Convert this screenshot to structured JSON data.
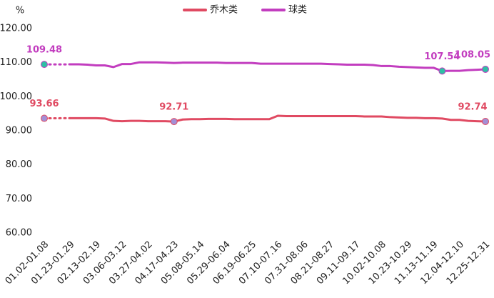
{
  "chart_data": {
    "type": "line",
    "y_label": "%",
    "categories": [
      "01.02-01.08",
      null,
      null,
      "01.23-01.29",
      null,
      null,
      "02.13-02.19",
      null,
      null,
      "03.06-03.12",
      null,
      null,
      "03.27-04.02",
      null,
      null,
      "04.17-04.23",
      null,
      null,
      "05.08-05.14",
      null,
      null,
      "05.29-06.04",
      null,
      null,
      "06.19-06.25",
      null,
      null,
      "07.10-07.16",
      null,
      null,
      "07.31-08.06",
      null,
      null,
      "08.21-08.27",
      null,
      null,
      "09.11-09.17",
      null,
      null,
      "10.02-10.08",
      null,
      null,
      "10.23-10.29",
      null,
      null,
      "11.13-11.19",
      null,
      null,
      "12.04-12.10",
      null,
      null,
      "12.25-12.31"
    ],
    "series": [
      {
        "name": "乔木类",
        "color": "#e04a62",
        "marker_color": "#a38fd6",
        "values": [
          93.66,
          null,
          null,
          93.7,
          93.7,
          93.7,
          93.7,
          93.6,
          92.9,
          92.8,
          92.9,
          92.9,
          92.8,
          92.8,
          92.8,
          92.71,
          93.3,
          93.4,
          93.4,
          93.5,
          93.5,
          93.5,
          93.4,
          93.4,
          93.4,
          93.4,
          93.4,
          94.4,
          94.3,
          94.3,
          94.3,
          94.3,
          94.3,
          94.3,
          94.3,
          94.3,
          94.3,
          94.2,
          94.2,
          94.2,
          94.0,
          93.9,
          93.8,
          93.8,
          93.7,
          93.7,
          93.6,
          93.2,
          93.2,
          92.9,
          92.8,
          92.74
        ],
        "value_labels": [
          "93.66",
          null,
          null,
          null,
          null,
          null,
          null,
          null,
          null,
          null,
          null,
          null,
          null,
          null,
          null,
          "92.71",
          null,
          null,
          null,
          null,
          null,
          null,
          null,
          null,
          null,
          null,
          null,
          null,
          null,
          null,
          null,
          null,
          null,
          null,
          null,
          null,
          null,
          null,
          null,
          null,
          null,
          null,
          null,
          null,
          null,
          null,
          null,
          null,
          null,
          null,
          null,
          "92.74"
        ]
      },
      {
        "name": "球类",
        "color": "#c23dbf",
        "marker_color": "#2fbfa5",
        "values": [
          109.48,
          null,
          null,
          109.5,
          109.5,
          109.4,
          109.2,
          109.2,
          108.7,
          109.6,
          109.6,
          110.1,
          110.1,
          110.1,
          110.0,
          109.9,
          110.0,
          110.0,
          110.0,
          110.0,
          110.0,
          109.9,
          109.9,
          109.9,
          109.9,
          109.7,
          109.7,
          109.7,
          109.7,
          109.7,
          109.7,
          109.7,
          109.7,
          109.6,
          109.5,
          109.4,
          109.4,
          109.4,
          109.3,
          109.0,
          109.0,
          108.8,
          108.7,
          108.6,
          108.5,
          108.5,
          107.54,
          107.6,
          107.6,
          107.8,
          107.9,
          108.05
        ],
        "value_labels": [
          "109.48",
          null,
          null,
          null,
          null,
          null,
          null,
          null,
          null,
          null,
          null,
          null,
          null,
          null,
          null,
          null,
          null,
          null,
          null,
          null,
          null,
          null,
          null,
          null,
          null,
          null,
          null,
          null,
          null,
          null,
          null,
          null,
          null,
          null,
          null,
          null,
          null,
          null,
          null,
          null,
          null,
          null,
          null,
          null,
          null,
          null,
          "107.54",
          null,
          null,
          null,
          null,
          "108.05"
        ]
      }
    ],
    "ylim": [
      60,
      120
    ],
    "yticks": [
      {
        "value": 60,
        "label": "60.00"
      },
      {
        "value": 70,
        "label": "70.00"
      },
      {
        "value": 80,
        "label": "80.00"
      },
      {
        "value": 90,
        "label": "90.00"
      },
      {
        "value": 100,
        "label": "100.00"
      },
      {
        "value": 110,
        "label": "110.00"
      },
      {
        "value": 120,
        "label": "120.00"
      }
    ],
    "grid": false
  }
}
